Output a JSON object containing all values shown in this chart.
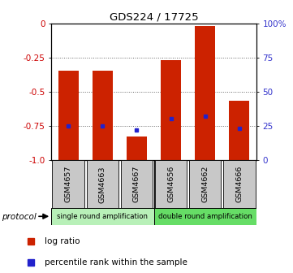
{
  "title": "GDS224 / 17725",
  "samples": [
    "GSM4657",
    "GSM4663",
    "GSM4667",
    "GSM4656",
    "GSM4662",
    "GSM4666"
  ],
  "log_ratios": [
    -0.35,
    -0.35,
    -0.83,
    -0.27,
    -0.02,
    -0.57
  ],
  "percentile_ranks": [
    25,
    25,
    22,
    30,
    32,
    23
  ],
  "bar_bottom": -1.0,
  "protocols": [
    {
      "label": "single round amplification",
      "color": "#b8f0b8"
    },
    {
      "label": "double round amplification",
      "color": "#66dd66"
    }
  ],
  "left_yticks": [
    0,
    -0.25,
    -0.5,
    -0.75,
    -1.0
  ],
  "right_yticks_pct": [
    100,
    75,
    50,
    25,
    0
  ],
  "bar_color": "#cc2200",
  "blue_color": "#2222cc",
  "grid_color": "#666666",
  "left_label_color": "#cc0000",
  "right_label_color": "#3333cc",
  "bg_color": "#ffffff",
  "sample_bg_color": "#c8c8c8",
  "bar_width": 0.6
}
